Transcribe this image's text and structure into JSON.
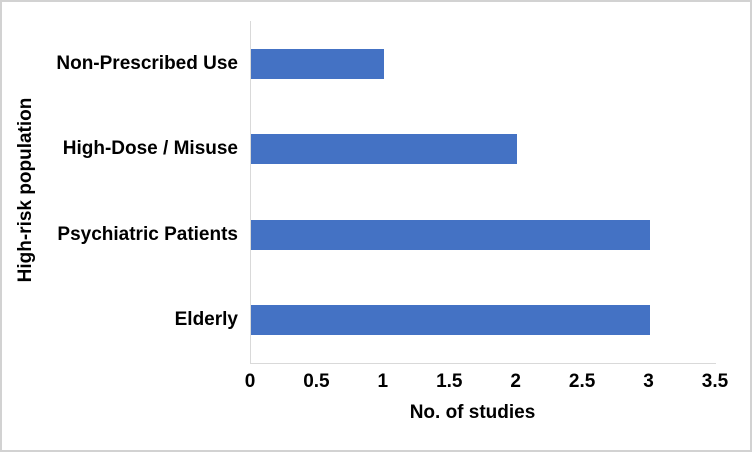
{
  "chart_data": {
    "type": "bar",
    "orientation": "horizontal",
    "categories": [
      "Non-Prescribed Use",
      "High-Dose / Misuse",
      "Psychiatric Patients",
      "Elderly"
    ],
    "values": [
      1,
      2,
      3,
      3
    ],
    "xlabel": "No. of studies",
    "ylabel": "High-risk population",
    "xlim": [
      0,
      3.5
    ],
    "xticks": [
      0,
      0.5,
      1,
      1.5,
      2,
      2.5,
      3,
      3.5
    ],
    "xtick_labels": [
      "0",
      "0.5",
      "1",
      "1.5",
      "2",
      "2.5",
      "3",
      "3.5"
    ],
    "grid": false,
    "legend": null,
    "colors": {
      "bar": "#4472C4",
      "axis_line": "#D9D9D9",
      "text": "#000000",
      "frame": "#D2D2D2",
      "background": "#FFFFFF"
    }
  }
}
